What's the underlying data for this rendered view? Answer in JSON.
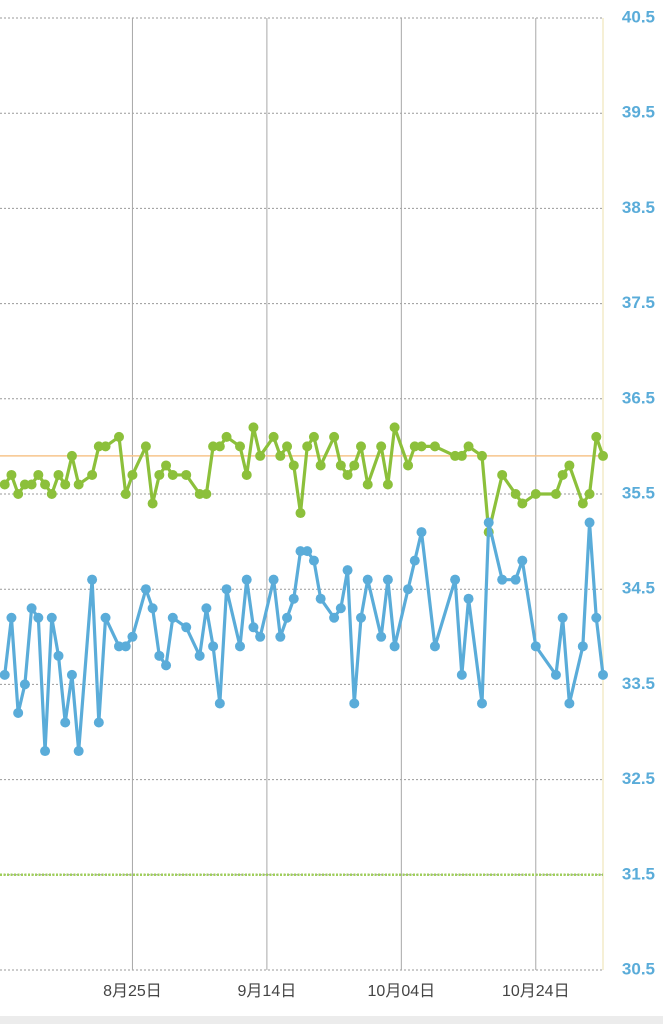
{
  "chart_data": {
    "type": "line",
    "x": [
      "08-06",
      "08-07",
      "08-08",
      "08-09",
      "08-10",
      "08-11",
      "08-12",
      "08-13",
      "08-14",
      "08-15",
      "08-16",
      "08-17",
      "08-19",
      "08-20",
      "08-21",
      "08-23",
      "08-24",
      "08-25",
      "08-27",
      "08-28",
      "08-29",
      "08-30",
      "08-31",
      "09-02",
      "09-04",
      "09-05",
      "09-06",
      "09-07",
      "09-08",
      "09-10",
      "09-11",
      "09-12",
      "09-13",
      "09-15",
      "09-16",
      "09-17",
      "09-18",
      "09-19",
      "09-20",
      "09-21",
      "09-22",
      "09-24",
      "09-25",
      "09-26",
      "09-27",
      "09-28",
      "09-29",
      "10-01",
      "10-02",
      "10-03",
      "10-05",
      "10-06",
      "10-07",
      "10-09",
      "10-12",
      "10-13",
      "10-14",
      "10-16",
      "10-17",
      "10-19",
      "10-21",
      "10-22",
      "10-24",
      "10-27",
      "10-28",
      "10-29",
      "10-31",
      "11-01",
      "11-02",
      "11-03"
    ],
    "series": [
      {
        "color": "#8cc03b",
        "values": [
          35.6,
          35.7,
          35.5,
          35.6,
          35.6,
          35.7,
          35.6,
          35.5,
          35.7,
          35.6,
          35.9,
          35.6,
          35.7,
          36.0,
          36.0,
          36.1,
          35.5,
          35.7,
          36.0,
          35.4,
          35.7,
          35.8,
          35.7,
          35.7,
          35.5,
          35.5,
          36.0,
          36.0,
          36.1,
          36.0,
          35.7,
          36.2,
          35.9,
          36.1,
          35.9,
          36.0,
          35.8,
          35.3,
          36.0,
          36.1,
          35.8,
          36.1,
          35.8,
          35.7,
          35.8,
          36.0,
          35.6,
          36.0,
          35.6,
          36.2,
          35.8,
          36.0,
          36.0,
          36.0,
          35.9,
          35.9,
          36.0,
          35.9,
          35.1,
          35.7,
          35.5,
          35.4,
          35.5,
          35.5,
          35.7,
          35.8,
          35.4,
          35.5,
          36.1,
          35.9
        ]
      },
      {
        "color": "#5aacd9",
        "values": [
          33.6,
          34.2,
          33.2,
          33.5,
          34.3,
          34.2,
          32.8,
          34.2,
          33.8,
          33.1,
          33.6,
          32.8,
          34.6,
          33.1,
          34.2,
          33.9,
          33.9,
          34.0,
          34.5,
          34.3,
          33.8,
          33.7,
          34.2,
          34.1,
          33.8,
          34.3,
          33.9,
          33.3,
          34.5,
          33.9,
          34.6,
          34.1,
          34.0,
          34.6,
          34.0,
          34.2,
          34.4,
          34.9,
          34.9,
          34.8,
          34.4,
          34.2,
          34.3,
          34.7,
          33.3,
          34.2,
          34.6,
          34.0,
          34.6,
          33.9,
          34.5,
          34.8,
          35.1,
          33.9,
          34.6,
          33.6,
          34.4,
          33.3,
          35.2,
          34.6,
          34.6,
          34.8,
          33.9,
          33.6,
          34.2,
          33.3,
          33.9,
          35.2,
          34.2,
          33.6
        ]
      }
    ],
    "xlim": [
      "08-05",
      "11-03"
    ],
    "xticks": [
      {
        "value": "08-25",
        "label": "8月25日"
      },
      {
        "value": "09-14",
        "label": "9月14日"
      },
      {
        "value": "10-04",
        "label": "10月04日"
      },
      {
        "value": "10-24",
        "label": "10月24日"
      }
    ],
    "ylim": [
      30.5,
      40.5
    ],
    "yticks": [
      30.5,
      31.5,
      32.5,
      33.5,
      34.5,
      35.5,
      36.5,
      37.5,
      38.5,
      39.5,
      40.5
    ],
    "grid": true,
    "reference_lines": [
      {
        "value": 35.9,
        "color": "#f7c58c",
        "style": "solid"
      },
      {
        "value": 31.5,
        "color": "#9fcf5a",
        "style": "dotted"
      }
    ]
  }
}
